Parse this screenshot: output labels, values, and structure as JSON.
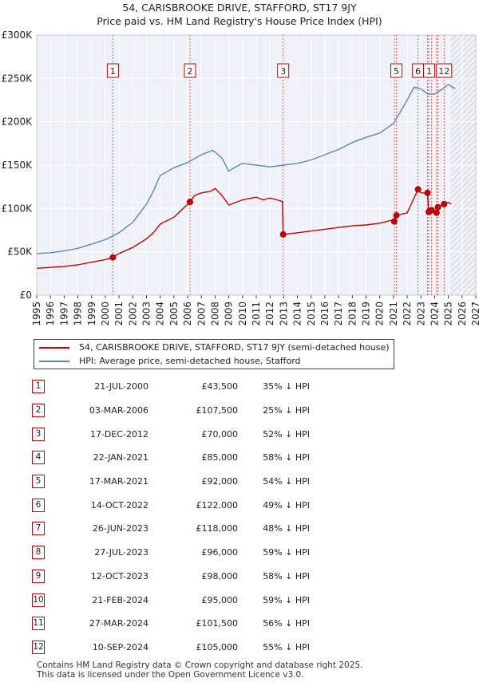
{
  "title_line1": "54, CARISBROOKE DRIVE, STAFFORD, ST17 9JY",
  "title_line2": "Price paid vs. HM Land Registry's House Price Index (HPI)",
  "chart_data": {
    "type": "line",
    "title": "54, CARISBROOKE DRIVE, STAFFORD, ST17 9JY — Price paid vs. HM Land Registry's House Price Index (HPI)",
    "xlabel": "",
    "ylabel": "",
    "xlim": [
      1995,
      2027
    ],
    "ylim": [
      0,
      300000
    ],
    "y_ticks": [
      0,
      50000,
      100000,
      150000,
      200000,
      250000,
      300000
    ],
    "y_tick_labels": [
      "£0",
      "£50K",
      "£100K",
      "£150K",
      "£200K",
      "£250K",
      "£300K"
    ],
    "x_ticks": [
      1995,
      1996,
      1997,
      1998,
      1999,
      2000,
      2001,
      2002,
      2003,
      2004,
      2005,
      2006,
      2007,
      2008,
      2009,
      2010,
      2011,
      2012,
      2013,
      2014,
      2015,
      2016,
      2017,
      2018,
      2019,
      2020,
      2021,
      2022,
      2023,
      2024,
      2025,
      2026,
      2027
    ],
    "forecast_from": 2025.2,
    "series": [
      {
        "name": "54, CARISBROOKE DRIVE, STAFFORD, ST17 9JY (semi-detached house)",
        "color": "#cc0000",
        "x": [
          1995,
          1996,
          1997,
          1998,
          1999,
          2000,
          2000.55,
          2001,
          2002,
          2003,
          2003.5,
          2004,
          2005,
          2006.17,
          2006.5,
          2007,
          2007.7,
          2008,
          2008.5,
          2009,
          2010,
          2011,
          2011.5,
          2012,
          2012.5,
          2012.9,
          2012.96,
          2013,
          2014,
          2015,
          2016,
          2017,
          2018,
          2019,
          2020,
          2021,
          2021.06,
          2021.2,
          2022,
          2022.79,
          2023,
          2023.48,
          2023.57,
          2023.78,
          2024.14,
          2024.24,
          2024.69,
          2025,
          2025.2
        ],
        "values": [
          31000,
          32000,
          33000,
          35000,
          38000,
          41000,
          43500,
          48000,
          55000,
          65000,
          72000,
          82000,
          90000,
          107500,
          115000,
          118000,
          120000,
          123000,
          115000,
          104000,
          110000,
          113000,
          110000,
          112000,
          110000,
          108000,
          70000,
          70000,
          72000,
          74000,
          76000,
          78000,
          80000,
          81000,
          83000,
          87000,
          85000,
          92000,
          95000,
          122000,
          118000,
          118000,
          96000,
          98000,
          95000,
          101500,
          105000,
          107000,
          105000
        ]
      },
      {
        "name": "HPI: Average price, semi-detached house, Stafford",
        "color": "#5b87b9",
        "x": [
          1995,
          1996,
          1997,
          1998,
          1999,
          2000,
          2001,
          2002,
          2003,
          2003.5,
          2004,
          2005,
          2006,
          2007,
          2007.8,
          2008,
          2008.5,
          2009,
          2009.5,
          2010,
          2011,
          2012,
          2013,
          2014,
          2015,
          2016,
          2017,
          2018,
          2019,
          2020,
          2021,
          2022,
          2022.5,
          2023,
          2023.5,
          2024,
          2024.5,
          2025,
          2025.5
        ],
        "values": [
          48000,
          49000,
          51000,
          54000,
          59000,
          64000,
          72000,
          84000,
          105000,
          120000,
          138000,
          147000,
          153000,
          162000,
          167000,
          165000,
          158000,
          143000,
          148000,
          152000,
          150000,
          148000,
          150000,
          152000,
          156000,
          162000,
          168000,
          176000,
          182000,
          187000,
          198000,
          225000,
          240000,
          238000,
          232000,
          232000,
          237000,
          243000,
          238000
        ]
      }
    ],
    "sales": [
      {
        "label": "1",
        "x": 2000.55,
        "value": 43500
      },
      {
        "label": "2",
        "x": 2006.17,
        "value": 107500
      },
      {
        "label": "3",
        "x": 2012.96,
        "value": 70000
      },
      {
        "label": "4",
        "x": 2021.06,
        "value": 85000
      },
      {
        "label": "5",
        "x": 2021.21,
        "value": 92000
      },
      {
        "label": "6",
        "x": 2022.79,
        "value": 122000
      },
      {
        "label": "7",
        "x": 2023.48,
        "value": 118000
      },
      {
        "label": "8",
        "x": 2023.57,
        "value": 96000
      },
      {
        "label": "9",
        "x": 2023.78,
        "value": 98000
      },
      {
        "label": "10",
        "x": 2024.14,
        "value": 95000
      },
      {
        "label": "11",
        "x": 2024.24,
        "value": 101500
      },
      {
        "label": "12",
        "x": 2024.69,
        "value": 105000
      }
    ],
    "top_marker_labels": [
      "1",
      "2",
      "3",
      "5",
      "6",
      "1",
      "12"
    ]
  },
  "legend": {
    "property_label": "54, CARISBROOKE DRIVE, STAFFORD, ST17 9JY (semi-detached house)",
    "hpi_label": "HPI: Average price, semi-detached house, Stafford",
    "property_color": "#cc0000",
    "hpi_color": "#5b87b9"
  },
  "table": [
    {
      "num": "1",
      "date": "21-JUL-2000",
      "price": "£43,500",
      "hpi": "35% ↓ HPI"
    },
    {
      "num": "2",
      "date": "03-MAR-2006",
      "price": "£107,500",
      "hpi": "25% ↓ HPI"
    },
    {
      "num": "3",
      "date": "17-DEC-2012",
      "price": "£70,000",
      "hpi": "52% ↓ HPI"
    },
    {
      "num": "4",
      "date": "22-JAN-2021",
      "price": "£85,000",
      "hpi": "58% ↓ HPI"
    },
    {
      "num": "5",
      "date": "17-MAR-2021",
      "price": "£92,000",
      "hpi": "54% ↓ HPI"
    },
    {
      "num": "6",
      "date": "14-OCT-2022",
      "price": "£122,000",
      "hpi": "49% ↓ HPI"
    },
    {
      "num": "7",
      "date": "26-JUN-2023",
      "price": "£118,000",
      "hpi": "48% ↓ HPI"
    },
    {
      "num": "8",
      "date": "27-JUL-2023",
      "price": "£96,000",
      "hpi": "59% ↓ HPI"
    },
    {
      "num": "9",
      "date": "12-OCT-2023",
      "price": "£98,000",
      "hpi": "58% ↓ HPI"
    },
    {
      "num": "10",
      "date": "21-FEB-2024",
      "price": "£95,000",
      "hpi": "59% ↓ HPI"
    },
    {
      "num": "11",
      "date": "27-MAR-2024",
      "price": "£101,500",
      "hpi": "56% ↓ HPI"
    },
    {
      "num": "12",
      "date": "10-SEP-2024",
      "price": "£105,000",
      "hpi": "55% ↓ HPI"
    }
  ],
  "footer": {
    "line1": "Contains HM Land Registry data © Crown copyright and database right 2025.",
    "line2": "This data is licensed under the Open Government Licence v3.0."
  }
}
